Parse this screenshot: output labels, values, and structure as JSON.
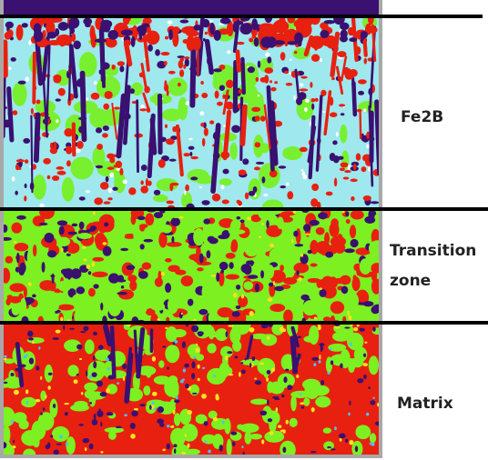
{
  "zones": [
    {
      "label": "Fe2B"
    },
    {
      "label_lines": [
        "Transition",
        "zone"
      ]
    },
    {
      "label": "Matrix"
    }
  ]
}
